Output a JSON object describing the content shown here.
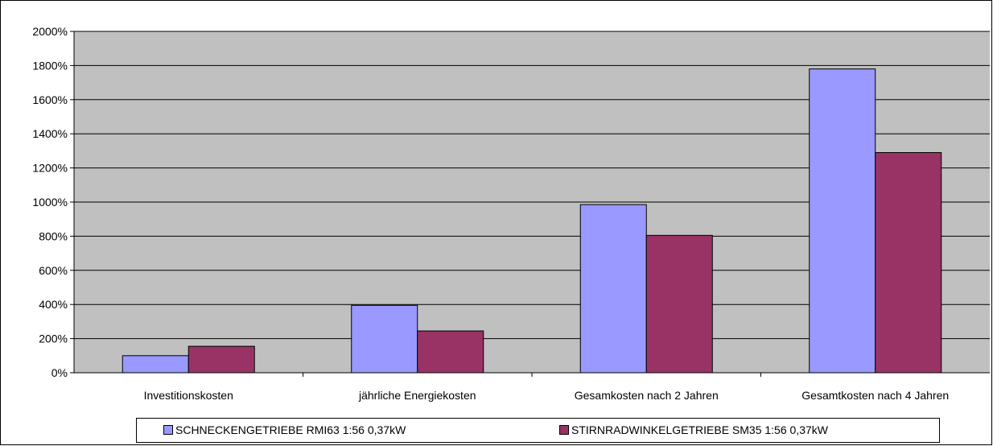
{
  "chart_data": {
    "type": "bar",
    "categories": [
      "Investitionskosten",
      "jährliche Energiekosten",
      "Gesamkosten nach 2 Jahren",
      "Gesamtkosten nach 4 Jahren"
    ],
    "series": [
      {
        "name": "SCHNECKENGETRIEBE RMI63 1:56 0,37kW",
        "color": "#9999ff",
        "values": [
          100,
          395,
          985,
          1780
        ]
      },
      {
        "name": "STIRNRADWINKELGETRIEBE SM35 1:56 0,37kW",
        "color": "#993366",
        "values": [
          155,
          245,
          805,
          1290
        ]
      }
    ],
    "yticks": [
      "0%",
      "200%",
      "400%",
      "600%",
      "800%",
      "1000%",
      "1200%",
      "1400%",
      "1600%",
      "1800%",
      "2000%"
    ],
    "ylim": [
      0,
      2000
    ],
    "plot_background": "#c0c0c0",
    "grid": true,
    "legend_position": "bottom"
  }
}
